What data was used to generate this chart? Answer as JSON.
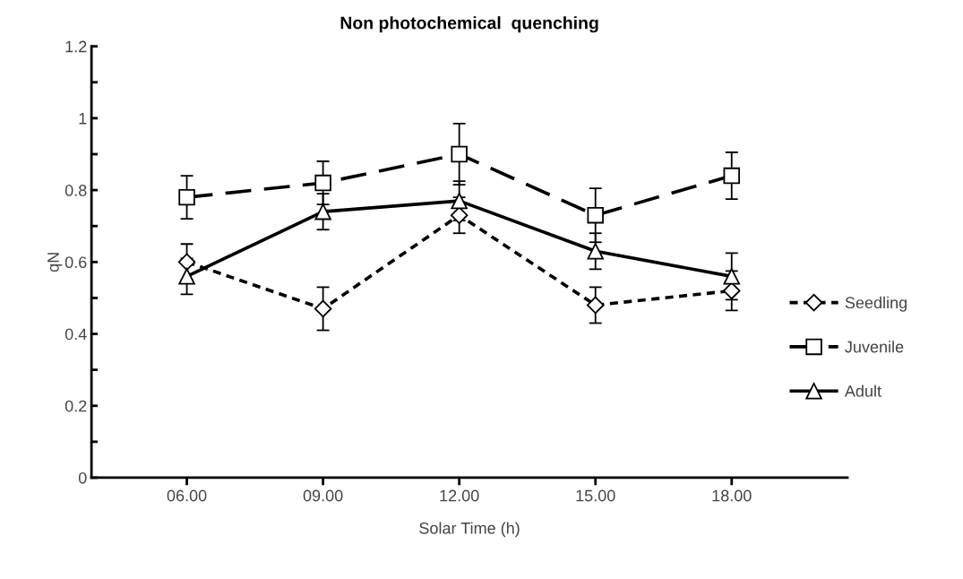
{
  "chart_data": {
    "type": "line",
    "title": "Non photochemical  quenching",
    "xlabel": "Solar Time (h)",
    "ylabel": "qN",
    "categories": [
      "06.00",
      "09.00",
      "12.00",
      "15.00",
      "18.00"
    ],
    "series": [
      {
        "name": "Seedling",
        "color": "#000000",
        "marker": "diamond",
        "line_style": "dotted",
        "values": [
          0.6,
          0.47,
          0.73,
          0.48,
          0.52
        ],
        "errors": [
          0.05,
          0.06,
          0.05,
          0.05,
          0.055
        ]
      },
      {
        "name": "Juvenile",
        "color": "#000000",
        "marker": "square",
        "line_style": "dashed",
        "values": [
          0.78,
          0.82,
          0.9,
          0.73,
          0.84
        ],
        "errors": [
          0.06,
          0.06,
          0.085,
          0.075,
          0.065
        ]
      },
      {
        "name": "Adult",
        "color": "#000000",
        "marker": "triangle",
        "line_style": "solid",
        "values": [
          0.56,
          0.74,
          0.77,
          0.63,
          0.56
        ],
        "errors": [
          0.05,
          0.05,
          0.055,
          0.05,
          0.065
        ]
      }
    ],
    "ylim": [
      0,
      1.2
    ],
    "yticks": [
      0,
      {
        "value": 0.1,
        "label": null
      },
      0.2,
      {
        "value": 0.3,
        "label": null
      },
      0.4,
      {
        "value": 0.5,
        "label": null
      },
      0.6,
      {
        "value": 0.7,
        "label": null
      },
      0.8,
      {
        "value": 0.9,
        "label": null
      },
      1,
      {
        "value": 1.1,
        "label": null
      },
      1.2
    ],
    "grid": false,
    "legend": "right"
  }
}
